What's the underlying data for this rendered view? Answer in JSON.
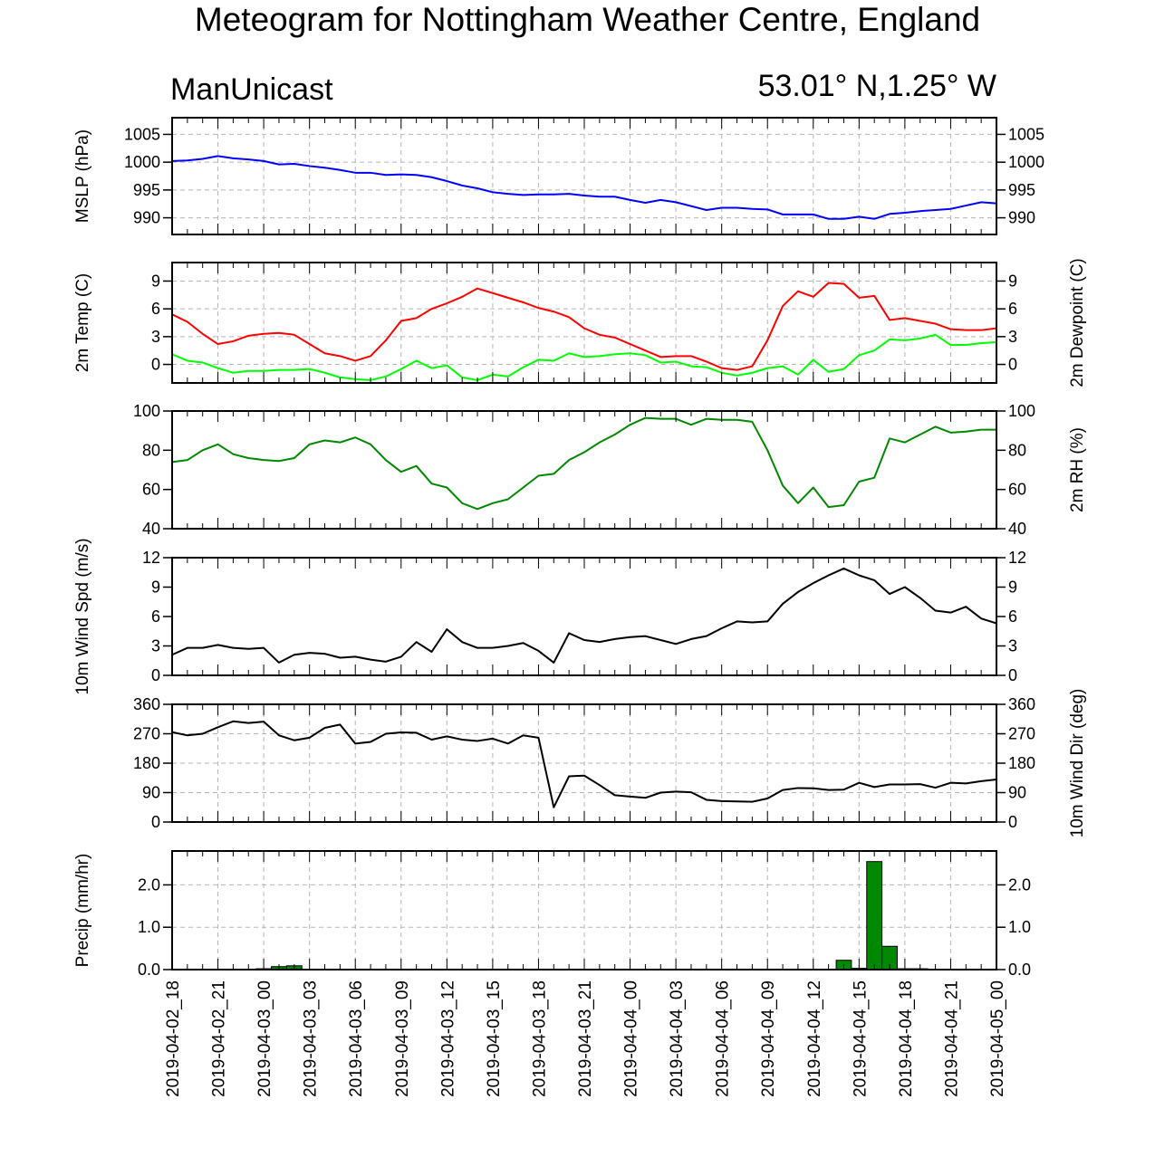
{
  "title": "Meteogram for Nottingham Weather Centre, England",
  "model": "ManUnicast",
  "location": "53.01° N,1.25° W",
  "x_tick_labels": [
    "2019-04-02_18",
    "2019-04-02_21",
    "2019-04-03_00",
    "2019-04-03_03",
    "2019-04-03_06",
    "2019-04-03_09",
    "2019-04-03_12",
    "2019-04-03_15",
    "2019-04-03_18",
    "2019-04-03_21",
    "2019-04-04_00",
    "2019-04-04_03",
    "2019-04-04_06",
    "2019-04-04_09",
    "2019-04-04_12",
    "2019-04-04_15",
    "2019-04-04_18",
    "2019-04-04_21",
    "2019-04-05_00"
  ],
  "colors": {
    "mslp": "#0000ff",
    "temp": "#ff0000",
    "dewpoint": "#00ff00",
    "rh": "#008800",
    "wind": "#000000",
    "precip_fill": "#008800"
  },
  "chart_data": [
    {
      "type": "line",
      "ylabel": "MSLP (hPa)",
      "ylim": [
        987,
        1008
      ],
      "yticks": [
        990,
        995,
        1000,
        1005
      ],
      "grid": true,
      "series": [
        {
          "color": "#0000ff",
          "values": [
            1000.2,
            1000.3,
            1000.6,
            1001.1,
            1000.7,
            1000.5,
            1000.2,
            999.6,
            999.7,
            999.3,
            999.0,
            998.6,
            998.1,
            998.1,
            997.7,
            997.8,
            997.7,
            997.3,
            996.6,
            995.8,
            995.3,
            994.6,
            994.3,
            994.1,
            994.2,
            994.2,
            994.3,
            994.0,
            993.8,
            993.8,
            993.2,
            992.7,
            993.2,
            992.8,
            992.1,
            991.4,
            991.8,
            991.8,
            991.6,
            991.5,
            990.6,
            990.6,
            990.6,
            989.8,
            989.8,
            990.2,
            989.8,
            990.7,
            990.9,
            991.2,
            991.4,
            991.6,
            992.2,
            992.8,
            992.6
          ]
        }
      ]
    },
    {
      "type": "line",
      "ylabel": "2m Temp (C)",
      "ylabel_right": "2m Dewpoint (C)",
      "ylim": [
        -2,
        11
      ],
      "yticks": [
        0,
        3,
        6,
        9
      ],
      "grid": true,
      "series": [
        {
          "color": "#ff0000",
          "values": [
            5.4,
            4.6,
            3.3,
            2.2,
            2.5,
            3.1,
            3.3,
            3.4,
            3.2,
            2.2,
            1.2,
            0.9,
            0.4,
            0.9,
            2.6,
            4.7,
            5.0,
            6.0,
            6.6,
            7.3,
            8.2,
            7.7,
            7.2,
            6.7,
            6.1,
            5.7,
            5.1,
            3.9,
            3.2,
            2.9,
            2.2,
            1.5,
            0.8,
            0.9,
            0.9,
            0.3,
            -0.4,
            -0.6,
            -0.2,
            2.6,
            6.3,
            7.9,
            7.3,
            8.8,
            8.7,
            7.2,
            7.4,
            4.8,
            5.0,
            4.7,
            4.4,
            3.8,
            3.7,
            3.7,
            3.9
          ]
        },
        {
          "color": "#00ff00",
          "values": [
            1.1,
            0.4,
            0.2,
            -0.4,
            -0.9,
            -0.7,
            -0.7,
            -0.6,
            -0.6,
            -0.5,
            -0.9,
            -1.4,
            -1.6,
            -1.7,
            -1.3,
            -0.5,
            0.4,
            -0.4,
            -0.1,
            -1.4,
            -1.7,
            -1.1,
            -1.3,
            -0.3,
            0.5,
            0.4,
            1.2,
            0.8,
            0.9,
            1.1,
            1.2,
            1.0,
            0.2,
            0.3,
            -0.2,
            -0.3,
            -0.9,
            -1.2,
            -0.9,
            -0.4,
            -0.2,
            -1.1,
            0.5,
            -0.8,
            -0.5,
            1.0,
            1.5,
            2.7,
            2.6,
            2.8,
            3.2,
            2.1,
            2.1,
            2.3,
            2.4
          ]
        }
      ]
    },
    {
      "type": "line",
      "ylabel_right": "2m RH (%)",
      "ylim": [
        40,
        100
      ],
      "yticks": [
        40,
        60,
        80,
        100
      ],
      "grid": false,
      "series": [
        {
          "color": "#008800",
          "values": [
            74,
            75,
            80,
            83,
            78,
            76,
            75,
            74.5,
            76,
            83,
            85,
            84,
            86.5,
            83,
            75,
            69,
            72,
            63,
            61,
            53,
            50,
            53,
            55,
            61,
            67,
            68,
            75,
            79,
            84,
            88,
            93,
            96.5,
            96,
            96,
            93,
            96,
            95.5,
            95.5,
            94.5,
            80,
            62,
            53,
            61,
            51,
            52,
            64,
            66,
            86,
            84,
            88,
            92,
            89,
            89.5,
            90.5,
            90.5
          ]
        }
      ]
    },
    {
      "type": "line",
      "ylabel": "10m Wind Spd (m/s)",
      "ylim": [
        0,
        12
      ],
      "yticks": [
        0,
        3,
        6,
        9,
        12
      ],
      "grid": false,
      "series": [
        {
          "color": "#000000",
          "values": [
            2.1,
            2.8,
            2.8,
            3.1,
            2.8,
            2.7,
            2.8,
            1.3,
            2.1,
            2.3,
            2.2,
            1.8,
            1.9,
            1.6,
            1.4,
            1.9,
            3.4,
            2.4,
            4.7,
            3.4,
            2.8,
            2.8,
            3.0,
            3.3,
            2.5,
            1.3,
            4.3,
            3.6,
            3.4,
            3.7,
            3.9,
            4.0,
            3.6,
            3.2,
            3.7,
            4.0,
            4.8,
            5.5,
            5.4,
            5.5,
            7.3,
            8.5,
            9.4,
            10.2,
            10.9,
            10.2,
            9.7,
            8.3,
            9.0,
            7.9,
            6.6,
            6.4,
            7.0,
            5.8,
            5.3
          ]
        }
      ]
    },
    {
      "type": "line",
      "ylabel_right": "10m Wind Dir (deg)",
      "ylim": [
        0,
        360
      ],
      "yticks": [
        0,
        90,
        180,
        270,
        360
      ],
      "grid": true,
      "series": [
        {
          "color": "#000000",
          "values": [
            275,
            265,
            270,
            290,
            308,
            303,
            307,
            265,
            250,
            258,
            288,
            298,
            240,
            245,
            270,
            274,
            273,
            252,
            262,
            252,
            248,
            255,
            240,
            265,
            258,
            45,
            140,
            142,
            113,
            82,
            78,
            74,
            90,
            93,
            91,
            68,
            64,
            63,
            62,
            72,
            98,
            104,
            103,
            98,
            99,
            120,
            107,
            115,
            115,
            116,
            105,
            120,
            118,
            125,
            130
          ]
        }
      ]
    },
    {
      "type": "bar",
      "ylabel": "Precip (mm/hr)",
      "ylim": [
        0,
        2.8
      ],
      "yticks": [
        0.0,
        1.0,
        2.0
      ],
      "ytick_labels": [
        "0.0",
        "1.0",
        "2.0"
      ],
      "grid": true,
      "bar_color": "#008800",
      "values": [
        0,
        0,
        0,
        0,
        0,
        0.01,
        0.02,
        0.07,
        0.09,
        0,
        0,
        0,
        0,
        0,
        0,
        0,
        0,
        0,
        0,
        0,
        0,
        0,
        0,
        0,
        0,
        0,
        0,
        0,
        0,
        0,
        0,
        0,
        0,
        0,
        0,
        0,
        0,
        0,
        0,
        0,
        0,
        0,
        0,
        0,
        0.22,
        0.03,
        2.55,
        0.55,
        0.02,
        0.02,
        0,
        0,
        0,
        0,
        0
      ]
    }
  ]
}
